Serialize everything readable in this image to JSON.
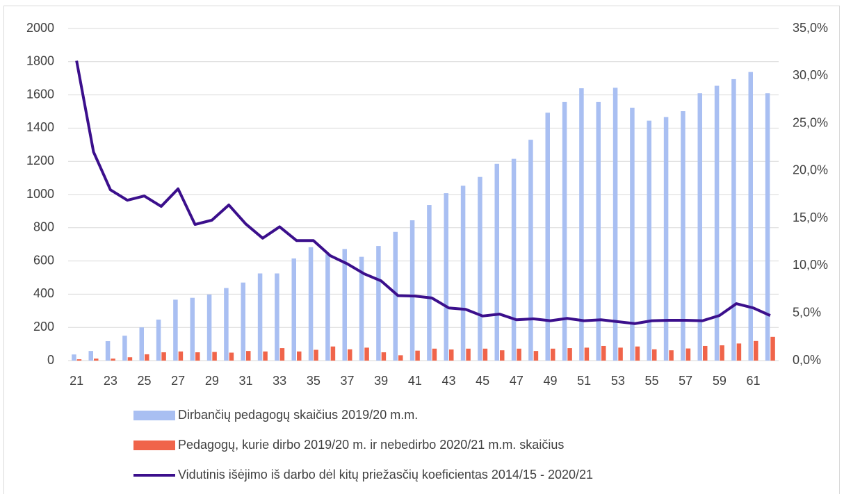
{
  "chart_data": {
    "type": "bar",
    "categories": [
      21,
      null,
      23,
      null,
      25,
      null,
      27,
      null,
      29,
      null,
      31,
      null,
      33,
      null,
      35,
      null,
      37,
      null,
      39,
      null,
      41,
      null,
      43,
      null,
      45,
      null,
      47,
      null,
      49,
      null,
      51,
      null,
      53,
      null,
      55,
      null,
      57,
      null,
      59,
      null,
      61,
      null
    ],
    "series": [
      {
        "name": "Dirbančių pedagogų skaičius 2019/20 m.m.",
        "type": "bar",
        "color": "#a9bff2",
        "values": [
          37,
          58,
          117,
          150,
          200,
          247,
          367,
          378,
          398,
          437,
          470,
          525,
          525,
          615,
          683,
          640,
          672,
          625,
          690,
          775,
          845,
          937,
          1008,
          1053,
          1106,
          1185,
          1215,
          1330,
          1493,
          1557,
          1640,
          1557,
          1643,
          1523,
          1445,
          1467,
          1502,
          1610,
          1655,
          1695,
          1738,
          1610
        ]
      },
      {
        "name": "Pedagogų, kurie dirbo 2019/20 m. ir nebedirbo 2020/21 m.m. skaičius",
        "type": "bar",
        "color": "#f0644a",
        "values": [
          8,
          12,
          12,
          20,
          38,
          50,
          55,
          50,
          52,
          48,
          58,
          55,
          75,
          55,
          65,
          85,
          68,
          78,
          50,
          32,
          60,
          72,
          67,
          72,
          72,
          62,
          72,
          58,
          72,
          75,
          78,
          88,
          78,
          85,
          68,
          62,
          73,
          88,
          92,
          103,
          118,
          143
        ]
      },
      {
        "name": "Vidutinis išėjimo iš darbo dėl kitų priežasčių koeficientas 2014/15 - 2020/21",
        "type": "line",
        "axis": "y2",
        "color": "#3b0f8c",
        "values": [
          31.6,
          22.0,
          18.0,
          16.9,
          17.35,
          16.25,
          18.1,
          14.35,
          14.8,
          16.4,
          14.4,
          12.9,
          14.1,
          12.65,
          12.65,
          11.05,
          10.2,
          9.15,
          8.4,
          6.85,
          6.8,
          6.6,
          5.55,
          5.4,
          4.7,
          4.9,
          4.3,
          4.4,
          4.2,
          4.45,
          4.2,
          4.3,
          4.1,
          3.9,
          4.2,
          4.25,
          4.25,
          4.2,
          4.75,
          6.0,
          5.55,
          4.75
        ]
      }
    ],
    "ylim": [
      0,
      2000
    ],
    "yticks": [
      0,
      200,
      400,
      600,
      800,
      1000,
      1200,
      1400,
      1600,
      1800,
      2000
    ],
    "y2lim": [
      0,
      35
    ],
    "y2ticks": [
      {
        "value": 0,
        "label": "0,0%"
      },
      {
        "value": 5,
        "label": "5,0%"
      },
      {
        "value": 10,
        "label": "10,0%"
      },
      {
        "value": 15,
        "label": "15,0%"
      },
      {
        "value": 20,
        "label": "20,0%"
      },
      {
        "value": 25,
        "label": "25,0%"
      },
      {
        "value": 30,
        "label": "30,0%"
      },
      {
        "value": 35,
        "label": "35,0%"
      }
    ],
    "grid": true,
    "legend": "bottom"
  }
}
